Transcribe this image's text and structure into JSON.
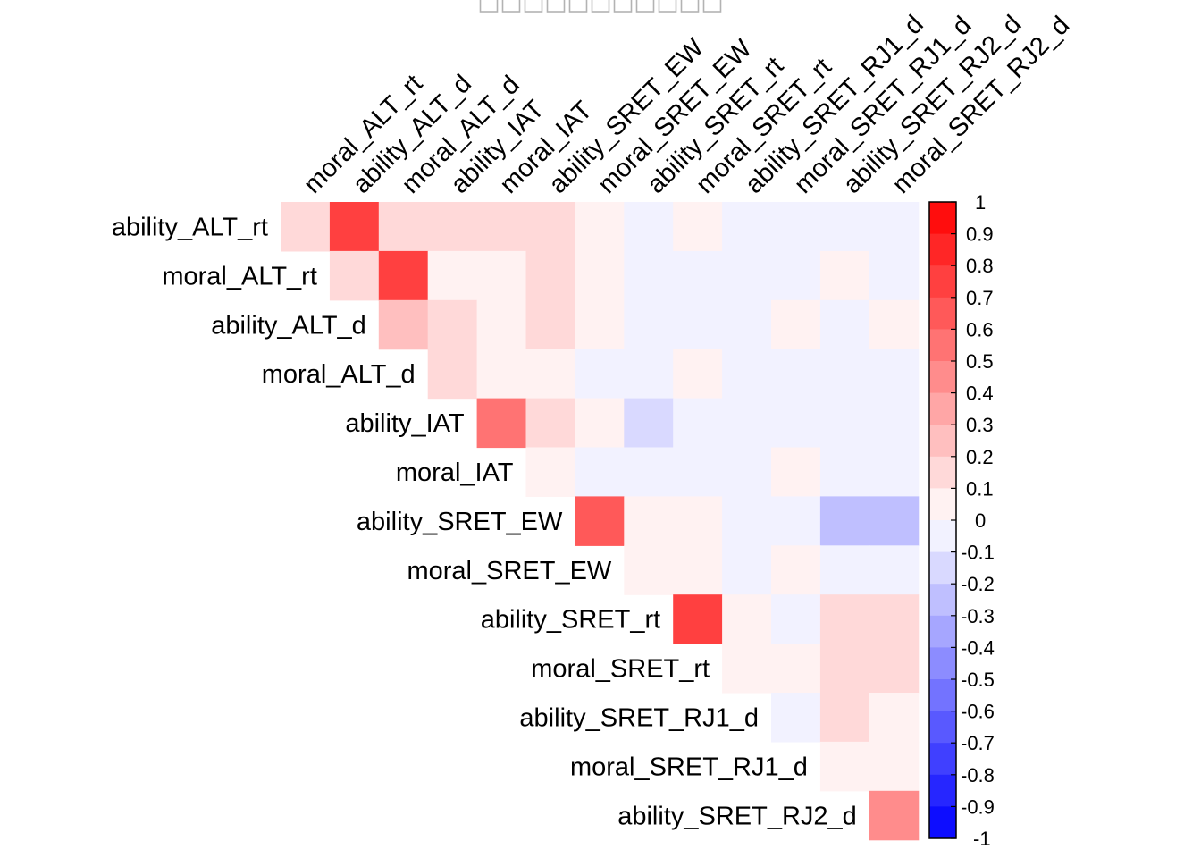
{
  "chart_data": {
    "type": "heatmap",
    "title_glyph_count": 11,
    "variables": [
      "ability_ALT_rt",
      "moral_ALT_rt",
      "ability_ALT_d",
      "moral_ALT_d",
      "ability_IAT",
      "moral_IAT",
      "ability_SRET_EW",
      "moral_SRET_EW",
      "ability_SRET_rt",
      "moral_SRET_rt",
      "ability_SRET_RJ1_d",
      "moral_SRET_RJ1_d",
      "ability_SRET_RJ2_d",
      "moral_SRET_RJ2_d"
    ],
    "row_labels": [
      "ability_ALT_rt",
      "moral_ALT_rt",
      "ability_ALT_d",
      "moral_ALT_d",
      "ability_IAT",
      "moral_IAT",
      "ability_SRET_EW",
      "moral_SRET_EW",
      "ability_SRET_rt",
      "moral_SRET_rt",
      "ability_SRET_RJ1_d",
      "moral_SRET_RJ1_d",
      "ability_SRET_RJ2_d"
    ],
    "column_labels": [
      "moral_ALT_rt",
      "ability_ALT_d",
      "moral_ALT_d",
      "ability_IAT",
      "moral_IAT",
      "ability_SRET_EW",
      "moral_SRET_EW",
      "ability_SRET_rt",
      "moral_SRET_rt",
      "ability_SRET_RJ1_d",
      "moral_SRET_RJ1_d",
      "ability_SRET_RJ2_d",
      "moral_SRET_RJ2_d"
    ],
    "note": "values are binned correlations (upper triangle, row variable vs column variable)",
    "values": [
      [
        0.15,
        0.75,
        0.15,
        0.15,
        0.15,
        0.15,
        0.05,
        -0.05,
        0.05,
        -0.05,
        -0.05,
        -0.05,
        -0.05
      ],
      [
        null,
        0.15,
        0.75,
        0.05,
        0.05,
        0.15,
        0.05,
        -0.05,
        -0.05,
        -0.05,
        -0.05,
        0.05,
        -0.05
      ],
      [
        null,
        null,
        0.25,
        0.15,
        0.05,
        0.15,
        0.05,
        -0.05,
        -0.05,
        -0.05,
        0.05,
        -0.05,
        0.05
      ],
      [
        null,
        null,
        null,
        0.15,
        0.05,
        0.05,
        -0.05,
        -0.05,
        0.05,
        -0.05,
        -0.05,
        -0.05,
        -0.05
      ],
      [
        null,
        null,
        null,
        null,
        0.55,
        0.15,
        0.05,
        -0.15,
        -0.05,
        -0.05,
        -0.05,
        -0.05,
        -0.05
      ],
      [
        null,
        null,
        null,
        null,
        null,
        0.05,
        -0.05,
        -0.05,
        -0.05,
        -0.05,
        0.05,
        -0.05,
        -0.05
      ],
      [
        null,
        null,
        null,
        null,
        null,
        null,
        0.65,
        0.05,
        0.05,
        -0.05,
        -0.05,
        -0.25,
        -0.25
      ],
      [
        null,
        null,
        null,
        null,
        null,
        null,
        null,
        0.05,
        0.05,
        -0.05,
        0.05,
        -0.05,
        -0.05
      ],
      [
        null,
        null,
        null,
        null,
        null,
        null,
        null,
        null,
        0.75,
        0.05,
        -0.05,
        0.15,
        0.15
      ],
      [
        null,
        null,
        null,
        null,
        null,
        null,
        null,
        null,
        null,
        0.05,
        0.05,
        0.15,
        0.15
      ],
      [
        null,
        null,
        null,
        null,
        null,
        null,
        null,
        null,
        null,
        null,
        -0.05,
        0.15,
        0.05
      ],
      [
        null,
        null,
        null,
        null,
        null,
        null,
        null,
        null,
        null,
        null,
        null,
        0.05,
        0.05
      ],
      [
        null,
        null,
        null,
        null,
        null,
        null,
        null,
        null,
        null,
        null,
        null,
        null,
        0.45
      ]
    ],
    "color_scale": {
      "min": -1,
      "max": 1,
      "bins": 20,
      "negative_color": "#0000ff",
      "zero_color": "#ffffff",
      "positive_color": "#ff0000",
      "ticks": [
        "1",
        "0.9",
        "0.8",
        "0.7",
        "0.6",
        "0.5",
        "0.4",
        "0.3",
        "0.2",
        "0.1",
        "0",
        "-0.1",
        "-0.2",
        "-0.3",
        "-0.4",
        "-0.5",
        "-0.6",
        "-0.7",
        "-0.8",
        "-0.9",
        "-1"
      ]
    },
    "legend": "right",
    "grid": false
  }
}
